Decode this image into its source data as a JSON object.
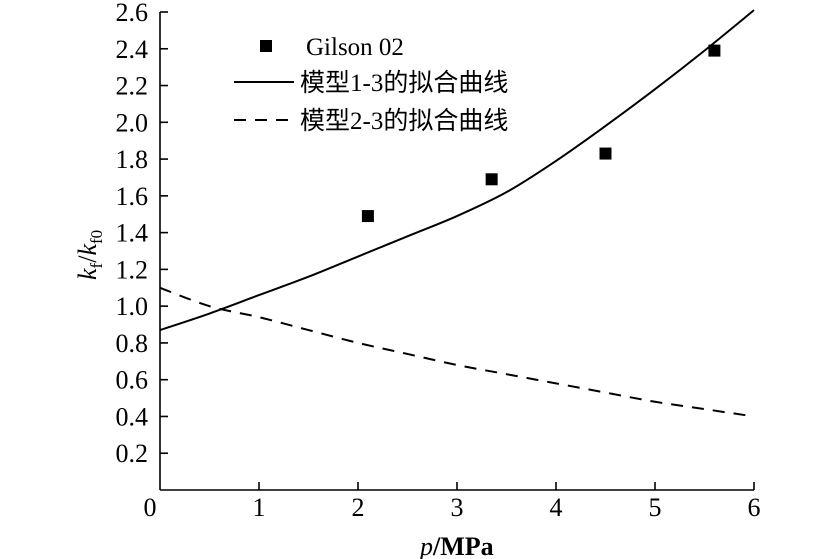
{
  "chart_data": {
    "type": "line",
    "title": "",
    "xlabel": "p/MPa",
    "xlabel_italic": "p",
    "xlabel_unit": "/MPa",
    "ylabel": "kf/kf0",
    "ylabel_parts": {
      "k1": "k",
      "sub1": "f",
      "slash": "/",
      "k2": "k",
      "sub2": "f0"
    },
    "xlim": [
      0,
      6
    ],
    "ylim": [
      0,
      2.6
    ],
    "x_ticks": [
      0,
      1,
      2,
      3,
      4,
      5,
      6
    ],
    "x_tick_labels": [
      "0",
      "1",
      "2",
      "3",
      "4",
      "5",
      "6"
    ],
    "y_ticks": [
      0.2,
      0.4,
      0.6,
      0.8,
      1.0,
      1.2,
      1.4,
      1.6,
      1.8,
      2.0,
      2.2,
      2.4,
      2.6
    ],
    "y_tick_labels": [
      "0.2",
      "0.4",
      "0.6",
      "0.8",
      "1.0",
      "1.2",
      "1.4",
      "1.6",
      "1.8",
      "2.0",
      "2.2",
      "2.4",
      "2.6"
    ],
    "grid": false,
    "legend_position": "top-left",
    "series": [
      {
        "name": "Gilson 02",
        "kind": "scatter",
        "marker": "square",
        "x": [
          2.1,
          3.35,
          4.5,
          5.6
        ],
        "y": [
          1.49,
          1.69,
          1.83,
          2.39
        ]
      },
      {
        "name": "模型1-3的拟合曲线",
        "kind": "line",
        "style": "solid",
        "x": [
          0,
          0.5,
          1,
          1.5,
          2,
          2.5,
          3,
          3.5,
          4,
          4.5,
          5,
          5.5,
          6
        ],
        "y": [
          0.87,
          0.96,
          1.06,
          1.16,
          1.27,
          1.38,
          1.49,
          1.62,
          1.79,
          1.98,
          2.18,
          2.39,
          2.61
        ]
      },
      {
        "name": "模型2-3的拟合曲线",
        "kind": "line",
        "style": "dashed",
        "x": [
          0,
          0.5,
          1,
          1.5,
          2,
          2.5,
          3,
          3.5,
          4,
          4.5,
          5,
          5.5,
          6
        ],
        "y": [
          1.1,
          1.0,
          0.94,
          0.87,
          0.8,
          0.74,
          0.68,
          0.63,
          0.58,
          0.53,
          0.48,
          0.44,
          0.4
        ]
      }
    ]
  }
}
